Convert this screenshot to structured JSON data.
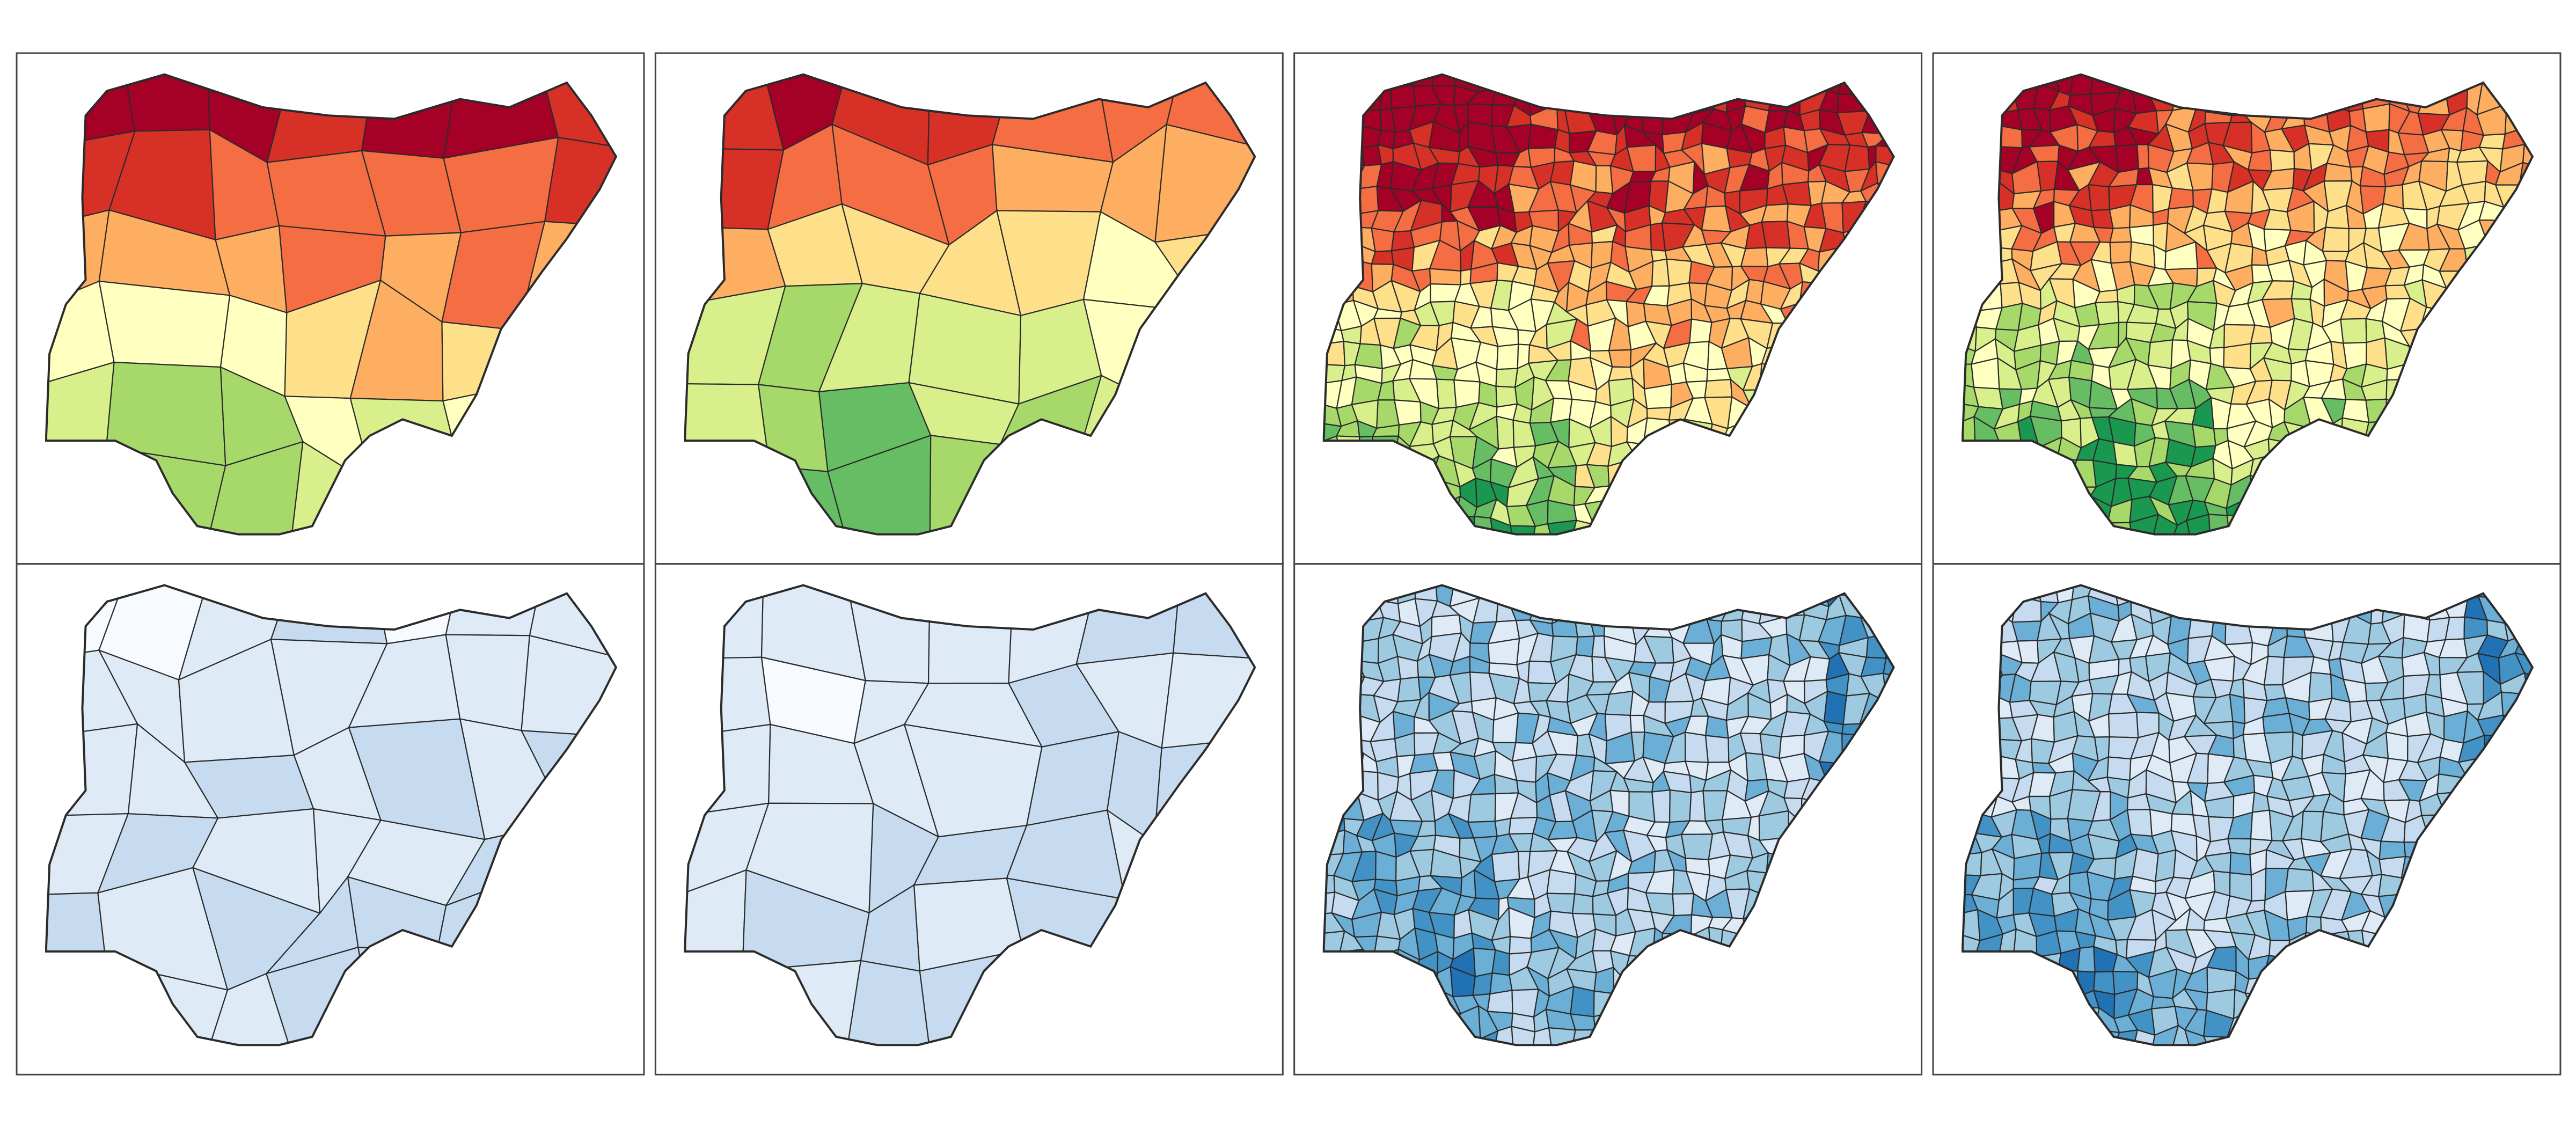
{
  "rows": [
    {
      "palette": [
        "#a50026",
        "#d73027",
        "#f46d43",
        "#fdae61",
        "#fee08b",
        "#ffffbf",
        "#d9ef8b",
        "#a6d96a",
        "#66bd63",
        "#1a9850"
      ]
    },
    {
      "palette": [
        "#f7fbff",
        "#deebf7",
        "#c6dbef",
        "#9ecae1",
        "#6baed6",
        "#4292c6",
        "#2171b5"
      ]
    }
  ]
}
